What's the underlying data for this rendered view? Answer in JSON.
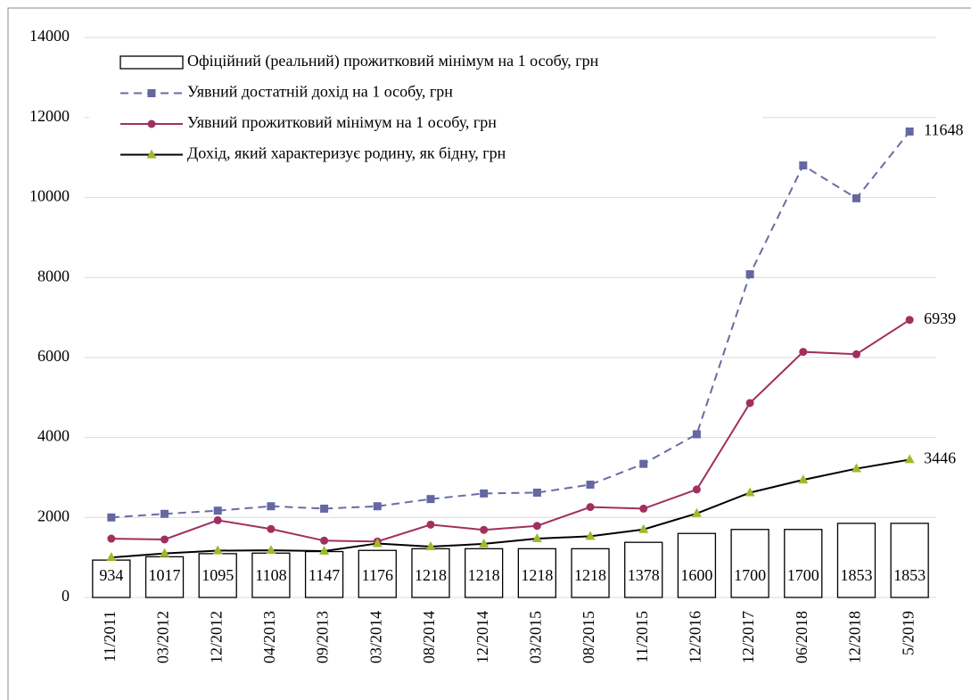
{
  "chart_data": {
    "type": "combo",
    "categories": [
      "11/2011",
      "03/2012",
      "12/2012",
      "04/2013",
      "09/2013",
      "03/2014",
      "08/2014",
      "12/2014",
      "03/2015",
      "08/2015",
      "11/2015",
      "12/2016",
      "12/2017",
      "06/2018",
      "12/2018",
      "5/2019"
    ],
    "ylim": [
      0,
      14000
    ],
    "yticks": [
      0,
      2000,
      4000,
      6000,
      8000,
      10000,
      12000,
      14000
    ],
    "grid": true,
    "legend": "top-left",
    "series": [
      {
        "name": "Офіційний (реальний) прожитковий  мінімум на 1 особу, грн",
        "kind": "bar",
        "color": "#ffffff",
        "stroke": "#000000",
        "values": [
          934,
          1017,
          1095,
          1108,
          1147,
          1176,
          1218,
          1218,
          1218,
          1218,
          1378,
          1600,
          1700,
          1700,
          1853,
          1853
        ]
      },
      {
        "name": "Уявний достатній дохід на 1 особу, грн",
        "kind": "line",
        "color": "#6b6ba6",
        "marker_color": "#6567a2",
        "marker": "square",
        "dashed": true,
        "values": [
          2000,
          2090,
          2170,
          2280,
          2220,
          2280,
          2460,
          2600,
          2620,
          2820,
          3340,
          4080,
          8080,
          10800,
          9980,
          11648
        ]
      },
      {
        "name": "Уявний прожитковий мінімум на 1 особу, грн",
        "kind": "line",
        "color": "#a0305e",
        "marker_color": "#a0305e",
        "marker": "circle",
        "dashed": false,
        "values": [
          1470,
          1450,
          1930,
          1710,
          1420,
          1400,
          1820,
          1690,
          1790,
          2260,
          2220,
          2700,
          4860,
          6140,
          6080,
          6939
        ]
      },
      {
        "name": "Дохід, який характеризує родину, як бідну, грн",
        "kind": "line",
        "color": "#000000",
        "marker_color": "#9bbb2c",
        "marker": "triangle",
        "dashed": false,
        "values": [
          1000,
          1100,
          1170,
          1180,
          1160,
          1350,
          1270,
          1340,
          1470,
          1530,
          1700,
          2100,
          2620,
          2940,
          3220,
          3446
        ]
      }
    ]
  }
}
